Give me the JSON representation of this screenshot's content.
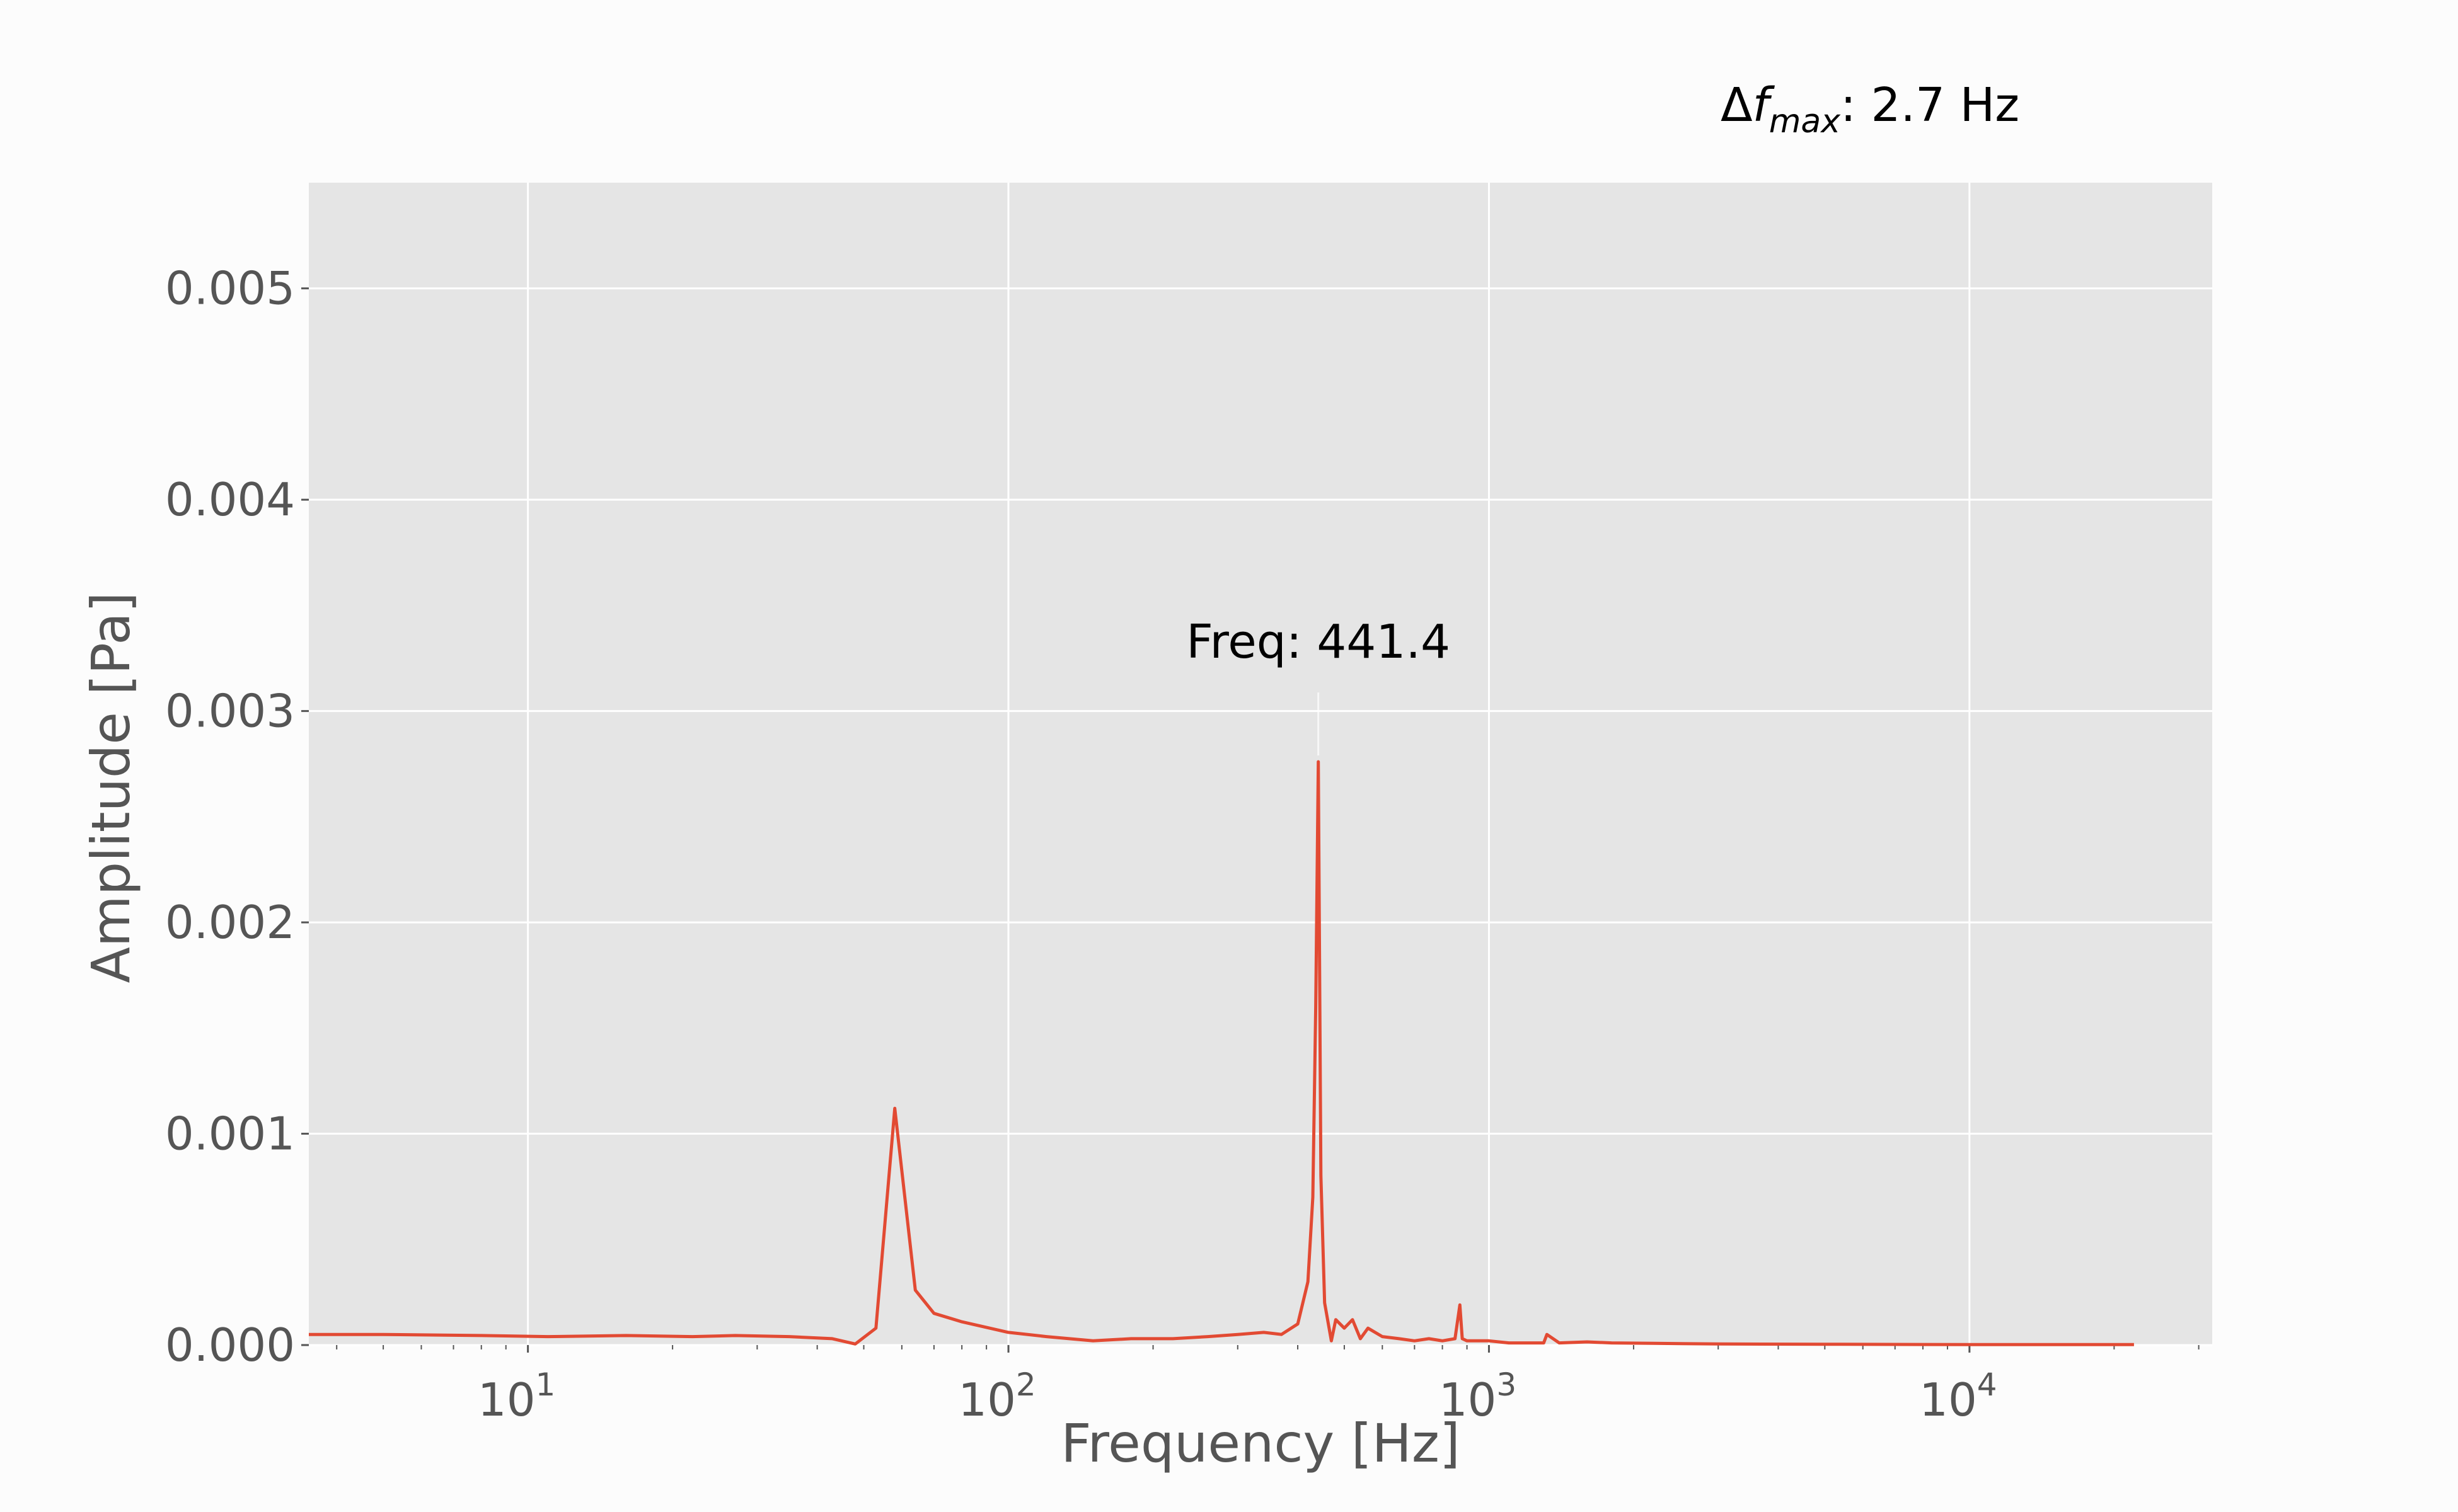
{
  "chart_data": {
    "type": "line",
    "header_note": {
      "symbol": "Δ",
      "variable": "f",
      "subscript": "max",
      "value": ": 2.7 Hz"
    },
    "xlabel": "Frequency [Hz]",
    "ylabel": "Amplitude [Pa]",
    "xscale": "log",
    "xlim": [
      3.5,
      32000
    ],
    "ylim": [
      0,
      0.0055
    ],
    "x_ticks": [
      {
        "base": "10",
        "exp": "1",
        "value": 10
      },
      {
        "base": "10",
        "exp": "2",
        "value": 100
      },
      {
        "base": "10",
        "exp": "3",
        "value": 1000
      },
      {
        "base": "10",
        "exp": "4",
        "value": 10000
      }
    ],
    "y_ticks": [
      "0.000",
      "0.001",
      "0.002",
      "0.003",
      "0.004",
      "0.005"
    ],
    "grid": true,
    "annotation": {
      "text": "Freq: 441.4",
      "x": 441.4,
      "y": 0.00276
    },
    "series": [
      {
        "color": "#e24a33",
        "x": [
          3.5,
          5,
          8,
          11,
          16,
          22,
          27,
          35,
          43,
          48,
          53,
          58,
          64,
          70,
          80,
          100,
          120,
          150,
          180,
          220,
          260,
          300,
          340,
          370,
          400,
          420,
          430,
          436,
          441.4,
          447,
          455,
          470,
          480,
          500,
          520,
          540,
          560,
          600,
          650,
          700,
          750,
          800,
          850,
          870,
          880,
          900,
          950,
          1000,
          1100,
          1200,
          1300,
          1320,
          1400,
          1600,
          1800,
          2200,
          3000,
          5000,
          10000,
          22000
        ],
        "y": [
          5e-05,
          5e-05,
          4.5e-05,
          4e-05,
          4.5e-05,
          4e-05,
          4.5e-05,
          4e-05,
          3e-05,
          5e-06,
          8e-05,
          0.00112,
          0.00026,
          0.00015,
          0.00011,
          6e-05,
          4e-05,
          2e-05,
          3e-05,
          3e-05,
          4e-05,
          5e-05,
          6e-05,
          5e-05,
          0.0001,
          0.0003,
          0.0007,
          0.0016,
          0.00276,
          0.0008,
          0.0002,
          2e-05,
          0.00012,
          8e-05,
          0.00012,
          3e-05,
          8e-05,
          4e-05,
          3e-05,
          2e-05,
          3e-05,
          2e-05,
          3e-05,
          0.00019,
          3e-05,
          2e-05,
          2e-05,
          2e-05,
          1e-05,
          1e-05,
          1e-05,
          5e-05,
          1e-05,
          1.5e-05,
          1e-05,
          8e-06,
          5e-06,
          4e-06,
          2e-06,
          2e-06
        ]
      }
    ]
  }
}
